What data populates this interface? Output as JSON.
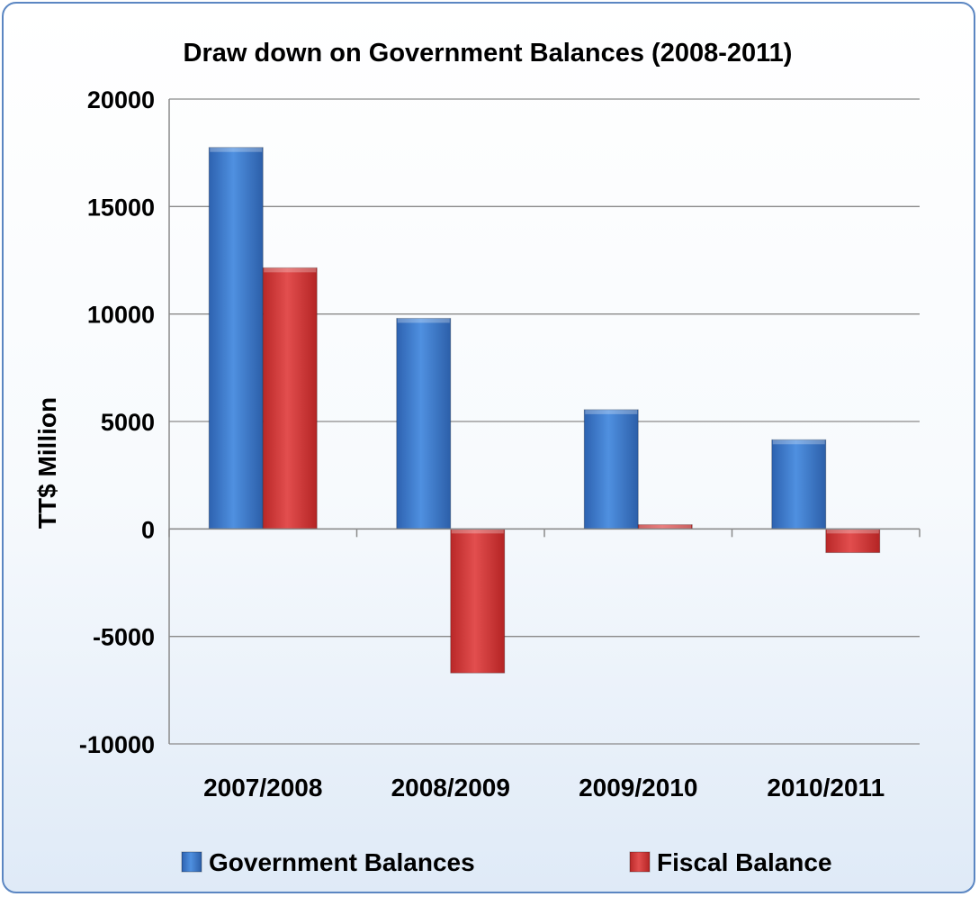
{
  "chart_data": {
    "type": "bar",
    "title": "Draw down on Government Balances (2008-2011)",
    "ylabel": "TT$ Million",
    "xlabel": "",
    "categories": [
      "2007/2008",
      "2008/2009",
      "2009/2010",
      "2010/2011"
    ],
    "series": [
      {
        "name": "Government Balances",
        "color": "#3f7fd4",
        "values": [
          17750,
          9800,
          5550,
          4150
        ]
      },
      {
        "name": "Fiscal Balance",
        "color": "#d93a3a",
        "values": [
          12150,
          -6700,
          200,
          -1100
        ]
      }
    ],
    "ylim": [
      -10000,
      20000
    ],
    "yticks": [
      20000,
      15000,
      10000,
      5000,
      0,
      -5000,
      -10000
    ],
    "grid": true,
    "legend": "bottom"
  }
}
